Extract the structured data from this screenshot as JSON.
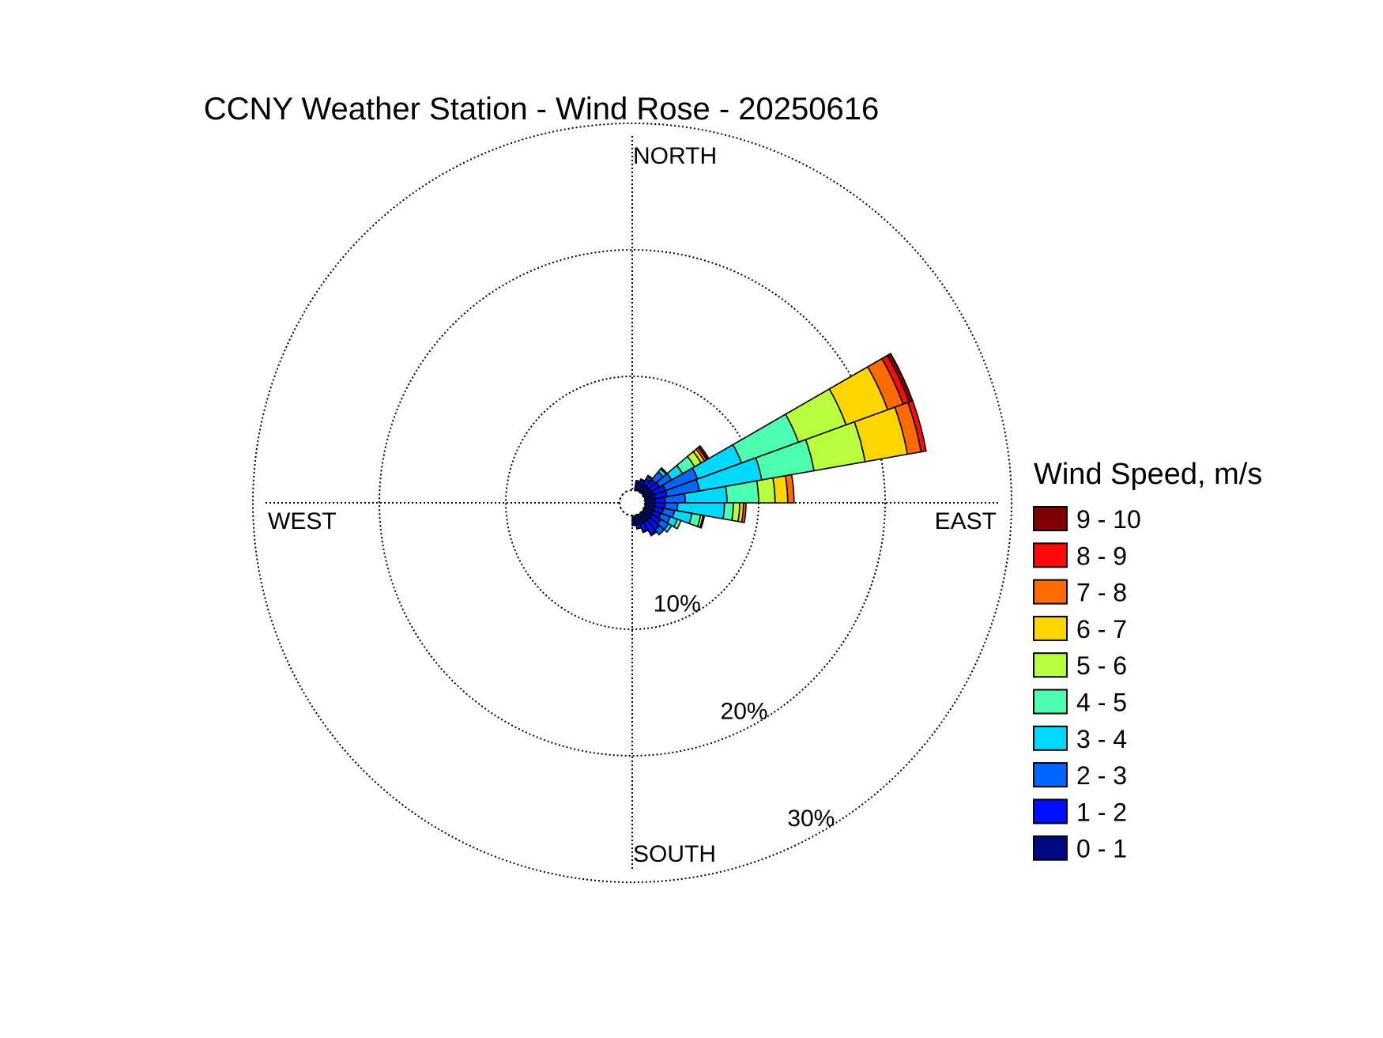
{
  "chart_data": {
    "type": "wind-rose",
    "title": "CCNY Weather Station - Wind Rose - 20250616",
    "direction_labels": {
      "north": "NORTH",
      "south": "SOUTH",
      "east": "EAST",
      "west": "WEST"
    },
    "radial_unit": "%",
    "radial_ticks": [
      10,
      20,
      30
    ],
    "radial_tick_labels": [
      "10%",
      "20%",
      "30%"
    ],
    "radial_max": 29,
    "grid": true,
    "legend": {
      "title": "Wind Speed, m/s",
      "placement": "right",
      "entries": [
        {
          "label": "9 - 10",
          "color": "#7f0000"
        },
        {
          "label": "8 - 9",
          "color": "#ff0a0a"
        },
        {
          "label": "7 - 8",
          "color": "#ff6a00"
        },
        {
          "label": "6 - 7",
          "color": "#ffd500"
        },
        {
          "label": "5 - 6",
          "color": "#b8ff3f"
        },
        {
          "label": "4 - 5",
          "color": "#4dffb0"
        },
        {
          "label": "3 - 4",
          "color": "#00d8ff"
        },
        {
          "label": "2 - 3",
          "color": "#0066ff"
        },
        {
          "label": "1 - 2",
          "color": "#0010ff"
        },
        {
          "label": "0 - 1",
          "color": "#000a80"
        }
      ]
    },
    "speed_bins": [
      "0 - 1",
      "1 - 2",
      "2 - 3",
      "3 - 4",
      "4 - 5",
      "5 - 6",
      "6 - 7",
      "7 - 8",
      "8 - 9",
      "9 - 10"
    ],
    "sector_width_deg": 10,
    "calm_circle_percent": 1,
    "sectors": [
      {
        "direction_deg": 15,
        "cumulative_percent": [
          1.6,
          1.8,
          1.8,
          1.8,
          1.8,
          1.8,
          1.8,
          1.8,
          1.8,
          1.8
        ]
      },
      {
        "direction_deg": 25,
        "cumulative_percent": [
          1.6,
          1.9,
          2.0,
          2.0,
          2.0,
          2.0,
          2.0,
          2.0,
          2.0,
          2.0
        ]
      },
      {
        "direction_deg": 35,
        "cumulative_percent": [
          1.7,
          2.2,
          2.4,
          2.5,
          2.5,
          2.5,
          2.5,
          2.5,
          2.5,
          2.5
        ]
      },
      {
        "direction_deg": 45,
        "cumulative_percent": [
          1.7,
          2.4,
          3.2,
          3.5,
          3.6,
          3.6,
          3.6,
          3.6,
          3.6,
          3.6
        ]
      },
      {
        "direction_deg": 55,
        "cumulative_percent": [
          1.7,
          2.5,
          3.6,
          4.6,
          5.7,
          6.3,
          6.6,
          6.8,
          6.8,
          7.0
        ]
      },
      {
        "direction_deg": 65,
        "cumulative_percent": [
          1.8,
          2.8,
          5.5,
          9.2,
          14.0,
          18.0,
          21.5,
          22.8,
          23.3,
          23.6
        ]
      },
      {
        "direction_deg": 75,
        "cumulative_percent": [
          1.8,
          2.8,
          5.4,
          10.4,
          14.6,
          18.7,
          22.1,
          23.2,
          23.6,
          23.6
        ]
      },
      {
        "direction_deg": 85,
        "cumulative_percent": [
          1.8,
          2.6,
          4.2,
          7.5,
          10.0,
          11.3,
          12.3,
          12.8,
          12.8,
          12.8
        ]
      },
      {
        "direction_deg": 95,
        "cumulative_percent": [
          1.8,
          2.6,
          3.6,
          7.3,
          8.0,
          8.5,
          8.8,
          9.0,
          9.0,
          9.0
        ]
      },
      {
        "direction_deg": 105,
        "cumulative_percent": [
          1.8,
          2.5,
          3.4,
          4.8,
          5.5,
          5.7,
          5.8,
          5.8,
          5.8,
          5.8
        ]
      },
      {
        "direction_deg": 115,
        "cumulative_percent": [
          1.8,
          2.4,
          3.2,
          3.8,
          4.1,
          4.1,
          4.1,
          4.1,
          4.1,
          4.1
        ]
      },
      {
        "direction_deg": 125,
        "cumulative_percent": [
          1.8,
          2.6,
          3.3,
          3.6,
          3.6,
          3.6,
          3.6,
          3.6,
          3.6,
          3.6
        ]
      },
      {
        "direction_deg": 135,
        "cumulative_percent": [
          1.8,
          2.8,
          3.3,
          3.3,
          3.3,
          3.3,
          3.3,
          3.3,
          3.3,
          3.3
        ]
      },
      {
        "direction_deg": 145,
        "cumulative_percent": [
          1.8,
          2.9,
          3.0,
          3.0,
          3.0,
          3.0,
          3.0,
          3.0,
          3.0,
          3.0
        ]
      },
      {
        "direction_deg": 155,
        "cumulative_percent": [
          1.8,
          2.4,
          2.5,
          2.5,
          2.5,
          2.5,
          2.5,
          2.5,
          2.5,
          2.5
        ]
      },
      {
        "direction_deg": 165,
        "cumulative_percent": [
          1.8,
          2.1,
          2.1,
          2.1,
          2.1,
          2.1,
          2.1,
          2.1,
          2.1,
          2.1
        ]
      },
      {
        "direction_deg": 175,
        "cumulative_percent": [
          1.8,
          1.8,
          1.8,
          1.8,
          1.8,
          1.8,
          1.8,
          1.8,
          1.8,
          1.8
        ]
      }
    ]
  }
}
